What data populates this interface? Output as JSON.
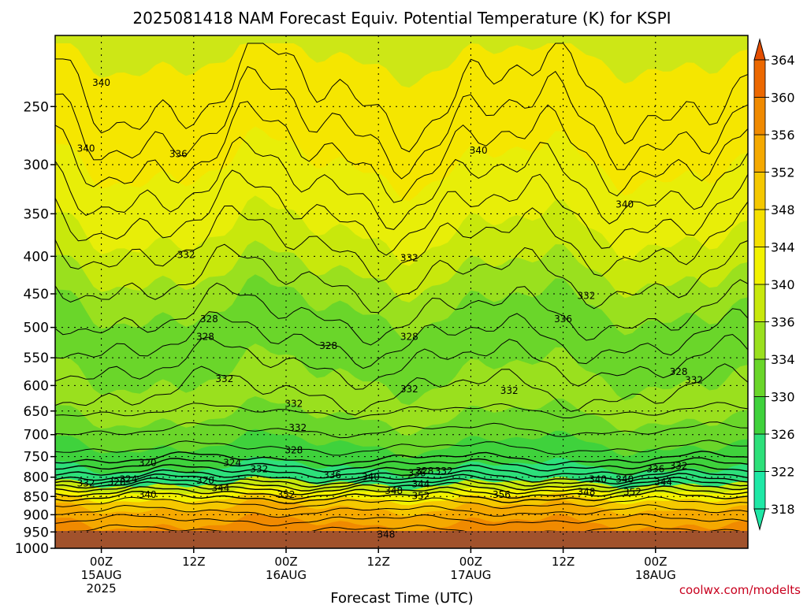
{
  "chart_data": {
    "type": "heatmap",
    "title": "2025081418 NAM Forecast Equiv. Potential Temperature (K) for KSPI",
    "xlabel": "Forecast Time (UTC)",
    "ylabel": "",
    "watermark": "coolwx.com/modelts",
    "y_scale": "log-pressure",
    "y_direction": "decreasing-upward",
    "ylim": [
      1000,
      200
    ],
    "y_ticks": [
      250,
      300,
      350,
      400,
      450,
      500,
      550,
      600,
      650,
      700,
      750,
      800,
      850,
      900,
      950,
      1000
    ],
    "x_range_hours": [
      -6,
      84
    ],
    "x_ticks": [
      {
        "hour": 0,
        "lines": [
          "00Z",
          "15AUG",
          "2025"
        ]
      },
      {
        "hour": 12,
        "lines": [
          "12Z"
        ]
      },
      {
        "hour": 24,
        "lines": [
          "00Z",
          "16AUG"
        ]
      },
      {
        "hour": 36,
        "lines": [
          "12Z"
        ]
      },
      {
        "hour": 48,
        "lines": [
          "00Z",
          "17AUG"
        ]
      },
      {
        "hour": 60,
        "lines": [
          "12Z"
        ]
      },
      {
        "hour": 72,
        "lines": [
          "00Z",
          "18AUG"
        ]
      }
    ],
    "grid": true,
    "colorbar": {
      "placement": "right",
      "levels": [
        318,
        322,
        326,
        330,
        334,
        336,
        340,
        344,
        348,
        352,
        356,
        360,
        364
      ],
      "colors": [
        "#1fe8a6",
        "#2de07a",
        "#3fd23c",
        "#6ad62a",
        "#9ae01e",
        "#c8e80c",
        "#f2f200",
        "#f5e000",
        "#f5c800",
        "#f5a900",
        "#f08a00",
        "#ec6800",
        "#e44e00"
      ]
    },
    "contour_labels": [
      {
        "text": "340",
        "hour": 0.0,
        "p": 232
      },
      {
        "text": "340",
        "hour": -2.0,
        "p": 285
      },
      {
        "text": "336",
        "hour": 10.0,
        "p": 290
      },
      {
        "text": "340",
        "hour": 49.0,
        "p": 287
      },
      {
        "text": "340",
        "hour": 68.0,
        "p": 340
      },
      {
        "text": "332",
        "hour": 11.0,
        "p": 398
      },
      {
        "text": "332",
        "hour": 40.0,
        "p": 402
      },
      {
        "text": "332",
        "hour": 63.0,
        "p": 453
      },
      {
        "text": "336",
        "hour": 60.0,
        "p": 487
      },
      {
        "text": "328",
        "hour": 14.0,
        "p": 487
      },
      {
        "text": "328",
        "hour": 13.5,
        "p": 515
      },
      {
        "text": "328",
        "hour": 40.0,
        "p": 515
      },
      {
        "text": "328",
        "hour": 29.5,
        "p": 530
      },
      {
        "text": "332",
        "hour": 16.0,
        "p": 588
      },
      {
        "text": "328",
        "hour": 75.0,
        "p": 575
      },
      {
        "text": "332",
        "hour": 77.0,
        "p": 590
      },
      {
        "text": "332",
        "hour": 40.0,
        "p": 607
      },
      {
        "text": "332",
        "hour": 53.0,
        "p": 610
      },
      {
        "text": "332",
        "hour": 25.0,
        "p": 635
      },
      {
        "text": "332",
        "hour": 25.5,
        "p": 685
      },
      {
        "text": "328",
        "hour": 25.0,
        "p": 735
      },
      {
        "text": "320",
        "hour": 6.0,
        "p": 765
      },
      {
        "text": "324",
        "hour": 17.0,
        "p": 765
      },
      {
        "text": "332",
        "hour": 20.5,
        "p": 780
      },
      {
        "text": "336",
        "hour": 41.0,
        "p": 790
      },
      {
        "text": "328",
        "hour": 42.0,
        "p": 785
      },
      {
        "text": "332",
        "hour": 44.5,
        "p": 785
      },
      {
        "text": "336",
        "hour": 30.0,
        "p": 795
      },
      {
        "text": "340",
        "hour": 35.0,
        "p": 800
      },
      {
        "text": "324",
        "hour": 3.5,
        "p": 805
      },
      {
        "text": "320",
        "hour": 13.5,
        "p": 808
      },
      {
        "text": "328",
        "hour": 2.0,
        "p": 812
      },
      {
        "text": "332",
        "hour": -2.0,
        "p": 815
      },
      {
        "text": "336",
        "hour": 72.0,
        "p": 780
      },
      {
        "text": "332",
        "hour": 75.0,
        "p": 772
      },
      {
        "text": "340",
        "hour": 64.5,
        "p": 805
      },
      {
        "text": "340",
        "hour": 68.0,
        "p": 805
      },
      {
        "text": "344",
        "hour": 73.0,
        "p": 812
      },
      {
        "text": "344",
        "hour": 41.5,
        "p": 818
      },
      {
        "text": "344",
        "hour": 15.5,
        "p": 828
      },
      {
        "text": "340",
        "hour": 6.0,
        "p": 845
      },
      {
        "text": "348",
        "hour": 38.0,
        "p": 835
      },
      {
        "text": "352",
        "hour": 24.0,
        "p": 845
      },
      {
        "text": "352",
        "hour": 41.5,
        "p": 848
      },
      {
        "text": "356",
        "hour": 52.0,
        "p": 845
      },
      {
        "text": "348",
        "hour": 63.0,
        "p": 838
      },
      {
        "text": "352",
        "hour": 69.0,
        "p": 838
      },
      {
        "text": "348",
        "hour": 37.0,
        "p": 958
      }
    ]
  }
}
